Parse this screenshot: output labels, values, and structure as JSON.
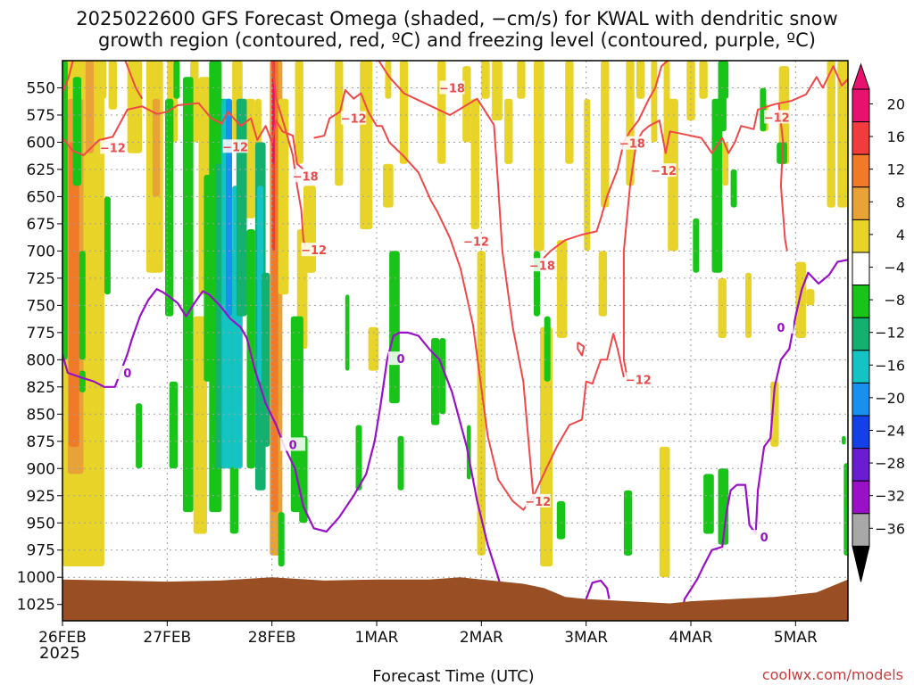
{
  "chart_data": {
    "type": "heatmap",
    "title_line1": "2025022600 GFS Forecast Omega (shaded, −cm/s) for KWAL with dendritic snow",
    "title_line2": "growth region (contoured, red, ºC) and freezing level (contoured, purple, ºC)",
    "xlabel": "Forecast Time (UTC)",
    "credit": "coolwx.com/models",
    "x_ticks": [
      "26FEB",
      "27FEB",
      "28FEB",
      "1MAR",
      "2MAR",
      "3MAR",
      "4MAR",
      "5MAR"
    ],
    "x_year": "2025",
    "y_ticks": [
      550,
      575,
      600,
      625,
      650,
      675,
      700,
      725,
      750,
      775,
      800,
      825,
      850,
      875,
      900,
      925,
      950,
      975,
      1000,
      1025
    ],
    "ylim": [
      525,
      1040
    ],
    "xlim_days": [
      0,
      7.5
    ],
    "grid": true,
    "colorbar": {
      "ticks": [
        "20",
        "16",
        "12",
        "8",
        "4",
        "−4",
        "−8",
        "−12",
        "−16",
        "−20",
        "−24",
        "−28",
        "−32",
        "−36"
      ],
      "colors": [
        "#e8116e",
        "#f03c3c",
        "#f07a28",
        "#e8a238",
        "#e8d428",
        "#ffffff",
        "#18c418",
        "#14b070",
        "#14c4c4",
        "#1890f0",
        "#1440e8",
        "#6a1cd0",
        "#9a10c8",
        "#a8a8a8"
      ]
    },
    "colors": {
      "dgz_contour": "#f04848",
      "freezing_contour": "#9a10c8",
      "terrain": "#9a4e24",
      "grid": "#a0a0a0"
    },
    "dgz_labels": [
      {
        "text": "−12",
        "day": 0.48,
        "p": 605
      },
      {
        "text": "−12",
        "day": 1.65,
        "p": 604
      },
      {
        "text": "−12",
        "day": 2.78,
        "p": 578
      },
      {
        "text": "−18",
        "day": 2.32,
        "p": 631
      },
      {
        "text": "−12",
        "day": 2.4,
        "p": 699
      },
      {
        "text": "−18",
        "day": 3.72,
        "p": 550
      },
      {
        "text": "−12",
        "day": 3.95,
        "p": 691
      },
      {
        "text": "−18",
        "day": 4.58,
        "p": 713
      },
      {
        "text": "−12",
        "day": 4.54,
        "p": 930
      },
      {
        "text": "−18",
        "day": 5.44,
        "p": 601
      },
      {
        "text": "−12",
        "day": 5.74,
        "p": 626
      },
      {
        "text": "−12",
        "day": 5.5,
        "p": 818
      },
      {
        "text": "−12",
        "day": 6.82,
        "p": 577
      }
    ],
    "freezing_labels": [
      {
        "text": "0",
        "day": 0.62,
        "p": 812
      },
      {
        "text": "0",
        "day": 2.2,
        "p": 878
      },
      {
        "text": "0",
        "day": 3.23,
        "p": 799
      },
      {
        "text": "0",
        "day": 6.7,
        "p": 963
      },
      {
        "text": "0",
        "day": 6.86,
        "p": 770
      }
    ]
  }
}
